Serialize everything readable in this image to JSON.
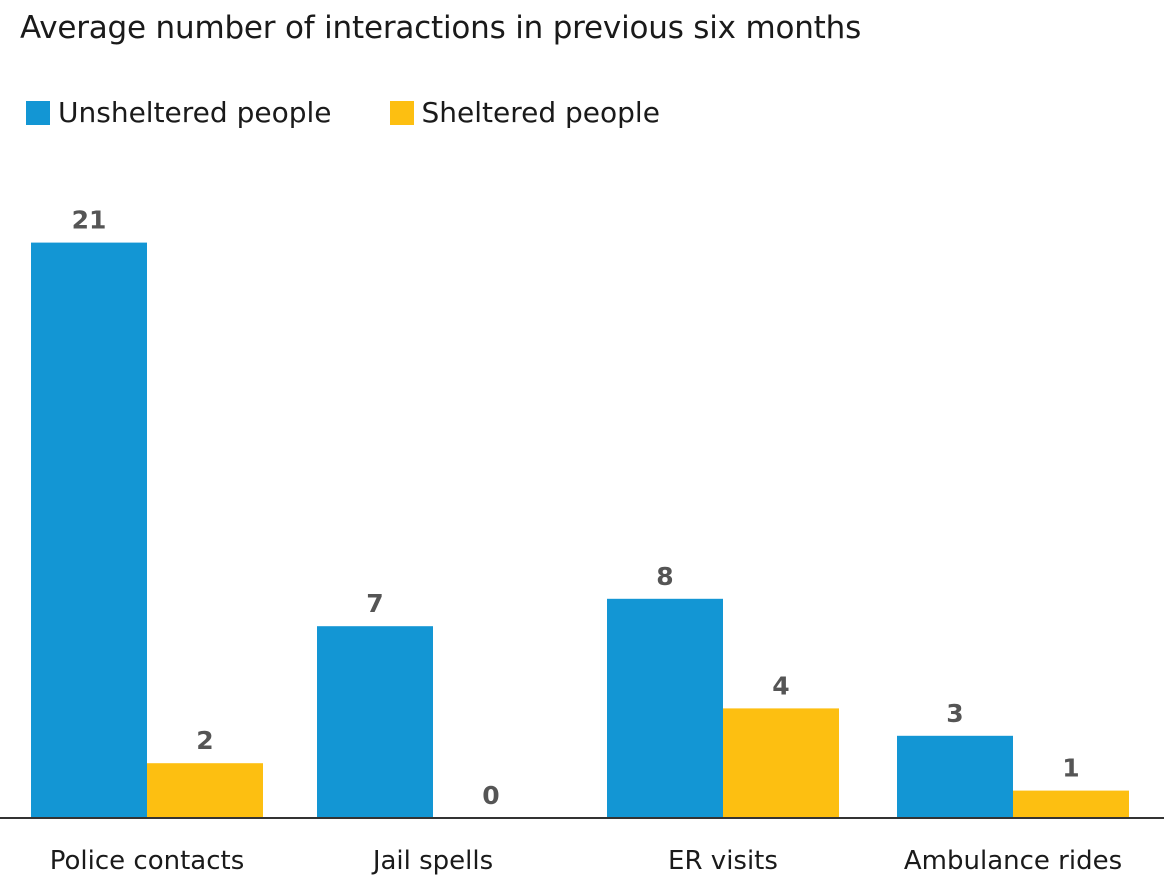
{
  "chart_data": {
    "type": "bar",
    "title": "Average number of interactions in previous six months",
    "categories": [
      "Police contacts",
      "Jail spells",
      "ER visits",
      "Ambulance rides"
    ],
    "series": [
      {
        "name": "Unsheltered people",
        "color": "#1396d4",
        "values": [
          21,
          7,
          8,
          3
        ]
      },
      {
        "name": "Sheltered people",
        "color": "#fdbf11",
        "values": [
          2,
          0,
          4,
          1
        ]
      }
    ],
    "ylim": [
      0,
      24
    ],
    "grid": false,
    "legend": "top-left"
  }
}
